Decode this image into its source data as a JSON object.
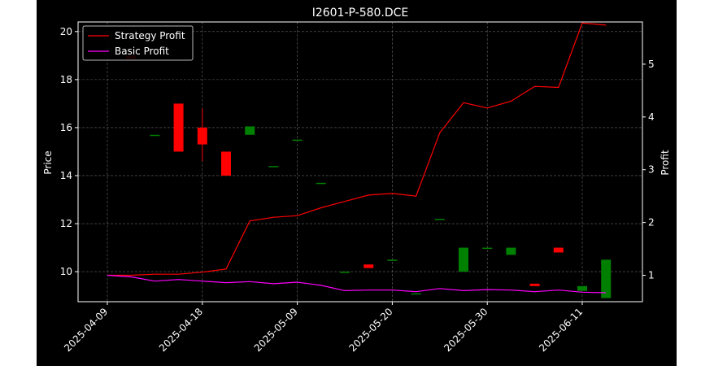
{
  "chart_data": {
    "type": "candlestick+line",
    "title": "I2601-P-580.DCE",
    "ylabel_left": "Price",
    "ylabel_right": "Profit",
    "xlabel": "",
    "x_tick_labels": [
      "2025-04-09",
      "2025-04-18",
      "2025-05-09",
      "2025-05-20",
      "2025-05-30",
      "2025-06-11"
    ],
    "x_tick_index": [
      0,
      4,
      8,
      12,
      16,
      20
    ],
    "ylim_left": [
      8.75,
      20.4
    ],
    "yticks_left": [
      10,
      12,
      14,
      16,
      18,
      20
    ],
    "ylim_right": [
      0.5,
      5.8
    ],
    "yticks_right": [
      1,
      2,
      3,
      4,
      5
    ],
    "grid": true,
    "legend_position": "upper-left",
    "colors": {
      "up": "#008000",
      "down": "#ff0000",
      "strategy": "#ff0000",
      "basic": "#ff00ff",
      "background": "#000000",
      "foreground": "#ffffff"
    },
    "candles": [
      {
        "i": 1,
        "open": 19.0,
        "close": 18.85,
        "high": 19.0,
        "low": 18.85
      },
      {
        "i": 2,
        "open": 15.7,
        "close": 15.7,
        "high": 15.7,
        "low": 15.7
      },
      {
        "i": 3,
        "open": 17.0,
        "close": 15.0,
        "high": 17.0,
        "low": 15.0
      },
      {
        "i": 4,
        "open": 16.0,
        "close": 15.3,
        "high": 16.8,
        "low": 14.6
      },
      {
        "i": 5,
        "open": 15.0,
        "close": 14.0,
        "high": 15.0,
        "low": 14.0
      },
      {
        "i": 6,
        "open": 15.7,
        "close": 16.05,
        "high": 16.05,
        "low": 15.7
      },
      {
        "i": 7,
        "open": 14.4,
        "close": 14.4,
        "high": 14.4,
        "low": 14.4
      },
      {
        "i": 8,
        "open": 15.5,
        "close": 15.5,
        "high": 15.5,
        "low": 15.5
      },
      {
        "i": 9,
        "open": 13.7,
        "close": 13.7,
        "high": 13.7,
        "low": 13.7
      },
      {
        "i": 10,
        "open": 10.0,
        "close": 10.0,
        "high": 10.0,
        "low": 10.0
      },
      {
        "i": 11,
        "open": 10.3,
        "close": 10.15,
        "high": 10.3,
        "low": 10.15
      },
      {
        "i": 12,
        "open": 10.5,
        "close": 10.5,
        "high": 10.5,
        "low": 10.5
      },
      {
        "i": 13,
        "open": 9.1,
        "close": 9.1,
        "high": 9.1,
        "low": 9.1
      },
      {
        "i": 14,
        "open": 12.2,
        "close": 12.2,
        "high": 12.2,
        "low": 12.2
      },
      {
        "i": 15,
        "open": 10.0,
        "close": 11.0,
        "high": 11.0,
        "low": 10.0
      },
      {
        "i": 16,
        "open": 11.0,
        "close": 11.0,
        "high": 11.0,
        "low": 11.0
      },
      {
        "i": 17,
        "open": 10.7,
        "close": 11.0,
        "high": 11.0,
        "low": 10.7
      },
      {
        "i": 18,
        "open": 9.5,
        "close": 9.4,
        "high": 9.5,
        "low": 9.4
      },
      {
        "i": 19,
        "open": 11.0,
        "close": 10.8,
        "high": 11.0,
        "low": 10.8
      },
      {
        "i": 20,
        "open": 9.2,
        "close": 9.4,
        "high": 9.4,
        "low": 9.2
      },
      {
        "i": 21,
        "open": 8.9,
        "close": 10.5,
        "high": 10.5,
        "low": 8.9
      }
    ],
    "series": [
      {
        "name": "Strategy Profit",
        "x": [
          0,
          1,
          2,
          3,
          4,
          5,
          6,
          7,
          8,
          9,
          10,
          11,
          12,
          13,
          14,
          15,
          16,
          17,
          18,
          19,
          20,
          21
        ],
        "values": [
          1.0,
          1.0,
          1.02,
          1.02,
          1.06,
          1.12,
          2.03,
          2.1,
          2.13,
          2.28,
          2.4,
          2.52,
          2.55,
          2.5,
          3.7,
          4.27,
          4.17,
          4.3,
          4.58,
          4.56,
          5.78,
          5.74
        ]
      },
      {
        "name": "Basic Profit",
        "x": [
          0,
          1,
          2,
          3,
          4,
          5,
          6,
          7,
          8,
          9,
          10,
          11,
          12,
          13,
          14,
          15,
          16,
          17,
          18,
          19,
          20,
          21
        ],
        "values": [
          1.0,
          0.97,
          0.89,
          0.92,
          0.89,
          0.86,
          0.88,
          0.84,
          0.87,
          0.81,
          0.71,
          0.72,
          0.72,
          0.69,
          0.75,
          0.71,
          0.73,
          0.72,
          0.69,
          0.72,
          0.68,
          0.67
        ]
      }
    ]
  }
}
